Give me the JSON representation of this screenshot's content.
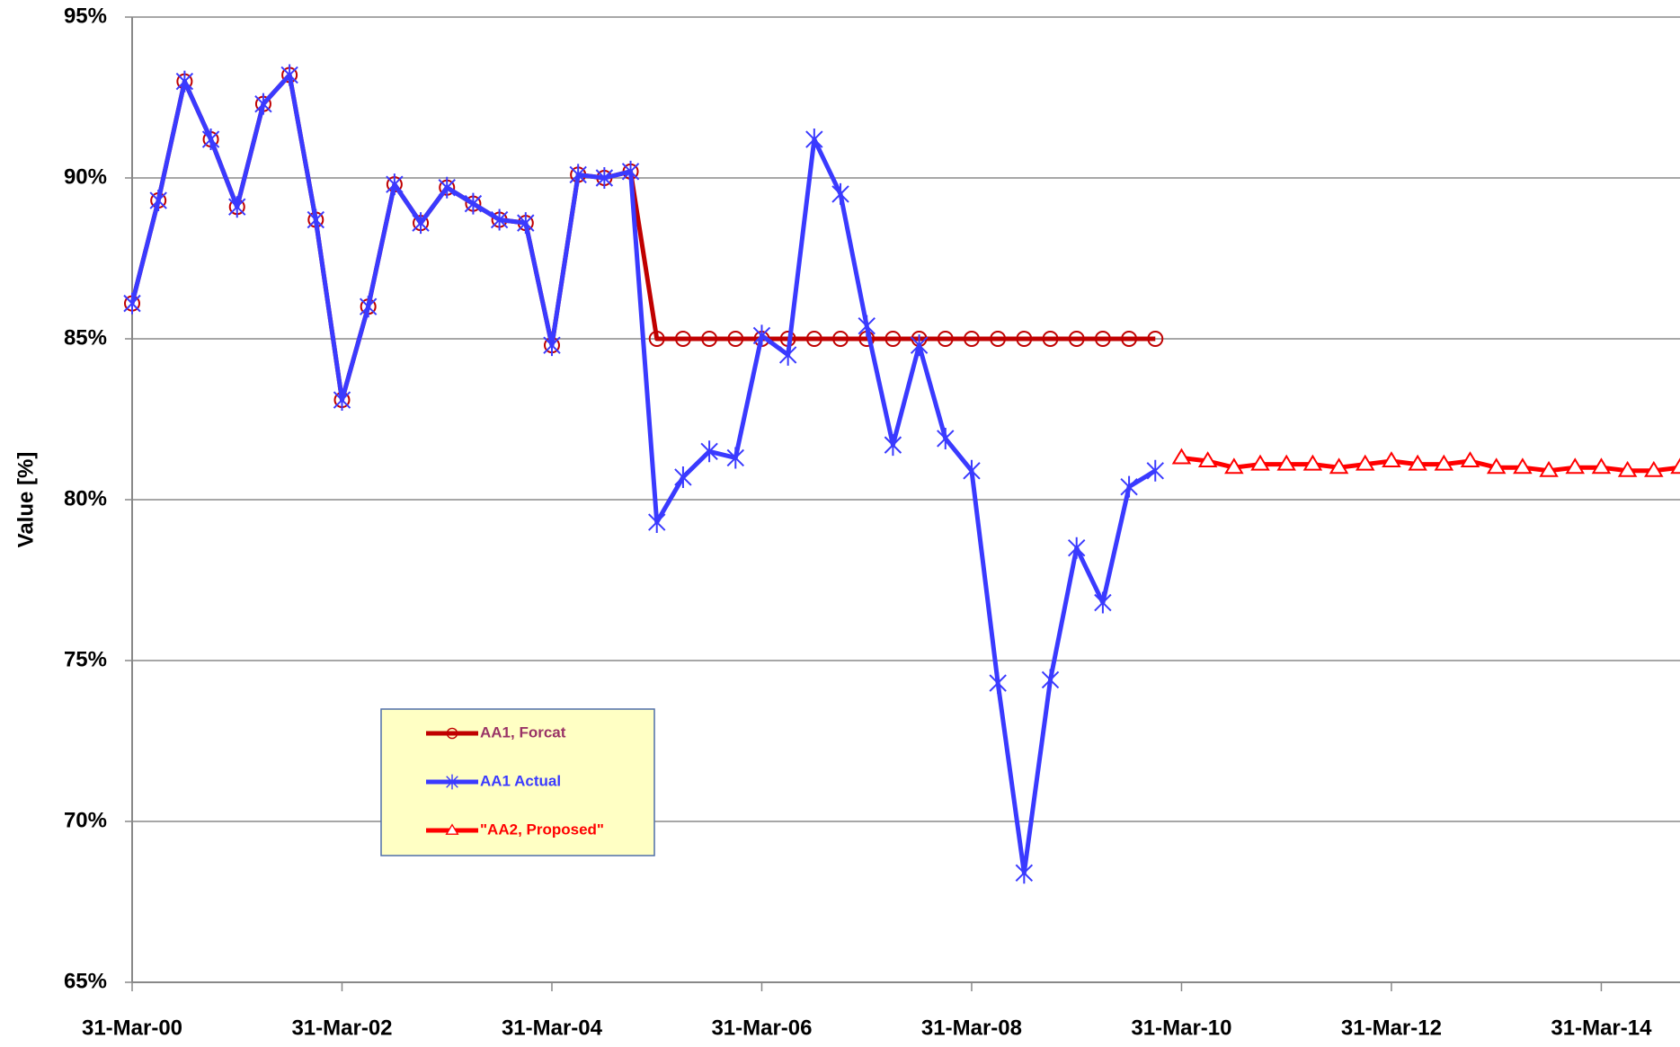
{
  "chart_data": {
    "type": "line",
    "ylabel": "Value [%]",
    "categories": [
      "31-Mar-00",
      null,
      null,
      null,
      null,
      null,
      null,
      null,
      "31-Mar-02",
      null,
      null,
      null,
      null,
      null,
      null,
      null,
      "31-Mar-04",
      null,
      null,
      null,
      null,
      null,
      null,
      null,
      "31-Mar-06",
      null,
      null,
      null,
      null,
      null,
      null,
      null,
      "31-Mar-08",
      null,
      null,
      null,
      null,
      null,
      null,
      null,
      "31-Mar-10",
      null,
      null,
      null,
      null,
      null,
      null,
      null,
      "31-Mar-12",
      null,
      null,
      null,
      null,
      null,
      null,
      null,
      "31-Mar-14",
      null,
      null,
      null
    ],
    "series": [
      {
        "name": "AA1, Forcat",
        "color": "#c00000",
        "marker": "circle",
        "values": [
          86.1,
          89.3,
          93.0,
          91.2,
          89.1,
          92.3,
          93.2,
          88.7,
          83.1,
          86.0,
          89.8,
          88.6,
          89.7,
          89.2,
          88.7,
          88.6,
          84.8,
          90.1,
          90.0,
          90.2,
          85,
          85,
          85,
          85,
          85,
          85,
          85,
          85,
          85,
          85,
          85,
          85,
          85,
          85,
          85,
          85,
          85,
          85,
          85,
          85,
          null,
          null,
          null,
          null,
          null,
          null,
          null,
          null,
          null,
          null,
          null,
          null,
          null,
          null,
          null,
          null,
          null,
          null,
          null,
          null
        ]
      },
      {
        "name": "AA1 Actual",
        "color": "#3a3aff",
        "marker": "star",
        "values": [
          86.1,
          89.3,
          93.0,
          91.2,
          89.1,
          92.3,
          93.2,
          88.7,
          83.1,
          86.0,
          89.8,
          88.6,
          89.7,
          89.2,
          88.7,
          88.6,
          84.8,
          90.1,
          90.0,
          90.2,
          79.3,
          80.7,
          81.5,
          81.3,
          85.1,
          84.5,
          91.2,
          89.5,
          85.4,
          81.7,
          84.8,
          81.9,
          80.9,
          74.3,
          68.4,
          74.4,
          78.5,
          76.8,
          80.4,
          80.9,
          null,
          null,
          null,
          null,
          null,
          null,
          null,
          null,
          null,
          null,
          null,
          null,
          null,
          null,
          null,
          null,
          null,
          null,
          null,
          null
        ]
      },
      {
        "name": "\"AA2, Proposed\"",
        "color": "#ff0000",
        "marker": "triangle",
        "values": [
          null,
          null,
          null,
          null,
          null,
          null,
          null,
          null,
          null,
          null,
          null,
          null,
          null,
          null,
          null,
          null,
          null,
          null,
          null,
          null,
          null,
          null,
          null,
          null,
          null,
          null,
          null,
          null,
          null,
          null,
          null,
          null,
          null,
          null,
          null,
          null,
          null,
          null,
          null,
          null,
          81.3,
          81.2,
          81.0,
          81.1,
          81.1,
          81.1,
          81.0,
          81.1,
          81.2,
          81.1,
          81.1,
          81.2,
          81.0,
          81.0,
          80.9,
          81.0,
          81.0,
          80.9,
          80.9,
          81.0
        ]
      }
    ],
    "ylim": [
      65,
      95
    ],
    "yticks": [
      {
        "value": 65,
        "label": "65%"
      },
      {
        "value": 70,
        "label": "70%"
      },
      {
        "value": 75,
        "label": "75%"
      },
      {
        "value": 80,
        "label": "80%"
      },
      {
        "value": 85,
        "label": "85%"
      },
      {
        "value": 90,
        "label": "90%"
      },
      {
        "value": 95,
        "label": "95%"
      }
    ],
    "grid": true,
    "legend": "lower left"
  }
}
